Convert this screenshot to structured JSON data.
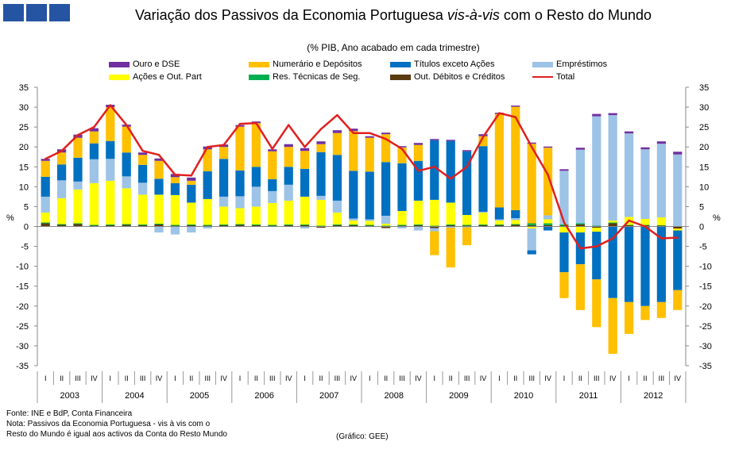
{
  "title_main": "Variação dos Passivos da Economia Portuguesa",
  "title_italic": "vis-à-vis",
  "title_end": "com o Resto do Mundo",
  "subtitle": "(% PIB, Ano acabado em cada trimestre)",
  "source": "Fonte: INE e BdP, Conta Financeira",
  "note_line1": "Nota: Passivos da Economia Portuguesa - vis à vis com o",
  "note_line2": "Resto do Mundo é igual aos activos da Conta do Resto Mundo",
  "credit": "(Gráfico: GEE)",
  "legend": [
    {
      "name": "Ouro e DSE",
      "color": "#7030a0",
      "kind": "bar"
    },
    {
      "name": "Numerário e Depósitos",
      "color": "#ffc000",
      "kind": "bar"
    },
    {
      "name": "Títulos exceto Ações",
      "color": "#0070c0",
      "kind": "bar"
    },
    {
      "name": "Empréstimos",
      "color": "#9dc3e6",
      "kind": "bar"
    },
    {
      "name": "Ações e Out. Part",
      "color": "#ffff00",
      "kind": "bar"
    },
    {
      "name": "Res. Técnicas de Seg.",
      "color": "#00b050",
      "kind": "bar"
    },
    {
      "name": "Out. Débitos e Créditos",
      "color": "#5a3a10",
      "kind": "bar"
    },
    {
      "name": "Total",
      "color": "#e02020",
      "kind": "line"
    }
  ],
  "chart_data": {
    "type": "bar",
    "stacked": true,
    "ylabel": "%",
    "ylim": [
      -35,
      35
    ],
    "yticks": [
      35,
      30,
      25,
      20,
      15,
      10,
      5,
      0,
      -5,
      -10,
      -15,
      -20,
      -25,
      -30,
      -35
    ],
    "quarter_labels": [
      "I",
      "II",
      "III",
      "IV",
      "I",
      "II",
      "III",
      "IV",
      "I",
      "II",
      "III",
      "IV",
      "I",
      "II",
      "III",
      "IV",
      "I",
      "II",
      "III",
      "IV",
      "I",
      "II",
      "III",
      "IV",
      "I",
      "II",
      "III",
      "IV",
      "I",
      "II",
      "III",
      "IV",
      "I",
      "II",
      "III",
      "IV",
      "I",
      "II",
      "III",
      "IV"
    ],
    "years": [
      "2003",
      "2004",
      "2005",
      "2006",
      "2007",
      "2008",
      "2009",
      "2010",
      "2011",
      "2012"
    ],
    "series": [
      {
        "name": "Out. Débitos e Créditos",
        "color": "#5a3a10",
        "values": [
          0.8,
          0.4,
          0.6,
          0.2,
          0.3,
          0.4,
          0.3,
          0.5,
          0.2,
          0.3,
          0.2,
          0.3,
          0.4,
          0.3,
          0.2,
          0.3,
          0.3,
          -0.3,
          0.3,
          0.3,
          0.2,
          -0.4,
          0.2,
          0.3,
          -0.4,
          0.3,
          0.2,
          0.3,
          0.3,
          0.4,
          0.3,
          0.3,
          0.2,
          0.5,
          -0.3,
          0.8,
          0.3,
          0.3,
          0.2,
          -0.5
        ]
      },
      {
        "name": "Res. Técnicas de Seg.",
        "color": "#00b050",
        "values": [
          0.2,
          0.2,
          0.2,
          0.2,
          0.2,
          0.2,
          0.2,
          0.2,
          0.2,
          0.2,
          0.2,
          0.2,
          0.2,
          0.2,
          0.2,
          0.2,
          0.2,
          0.2,
          0.2,
          0.2,
          0.2,
          0.2,
          0.2,
          0.2,
          0.2,
          0.2,
          0.2,
          0.2,
          0.2,
          0.2,
          0.5,
          0.5,
          0.3,
          0.3,
          0.2,
          0.2,
          0.1,
          0.1,
          0.1,
          0.1
        ]
      },
      {
        "name": "Ações e Out. Part",
        "color": "#ffff00",
        "values": [
          2.5,
          6.5,
          8.5,
          10.5,
          11.0,
          9.0,
          7.5,
          7.3,
          7.5,
          5.5,
          6.5,
          4.5,
          4.0,
          4.5,
          5.5,
          6.0,
          7.0,
          6.5,
          3.0,
          1.0,
          1.0,
          0.5,
          3.5,
          6.0,
          6.5,
          5.5,
          2.5,
          3.0,
          1.0,
          1.0,
          -0.5,
          1.0,
          -1.5,
          -1.5,
          -1.0,
          0.5,
          2.0,
          1.5,
          2.0,
          -0.5
        ]
      },
      {
        "name": "Empréstimos",
        "color": "#9dc3e6",
        "values": [
          4.0,
          4.5,
          2.0,
          6.0,
          5.5,
          3.0,
          3.0,
          -1.5,
          -2.0,
          -1.5,
          -0.5,
          2.5,
          3.0,
          5.0,
          3.0,
          4.0,
          -0.5,
          1.0,
          3.0,
          0.5,
          0.4,
          2.0,
          -0.5,
          -1.0,
          -0.8,
          -0.3,
          -0.2,
          0.2,
          0.3,
          0.5,
          -5.5,
          1.0,
          13.5,
          18.5,
          27.5,
          26.5,
          21.0,
          17.5,
          18.5,
          18.0
        ]
      },
      {
        "name": "Títulos exceto Ações",
        "color": "#0070c0",
        "values": [
          5.0,
          4.0,
          6.0,
          4.0,
          4.5,
          6.0,
          4.5,
          4.0,
          3.0,
          4.5,
          7.0,
          9.5,
          6.5,
          5.0,
          3.0,
          4.5,
          7.0,
          11.0,
          11.5,
          12.0,
          12.0,
          13.5,
          12.0,
          10.0,
          15.0,
          15.5,
          16.0,
          16.5,
          3.0,
          2.0,
          -1.0,
          -1.0,
          -10.0,
          -8.0,
          -12.0,
          -18.0,
          -19.0,
          -20.0,
          -19.0,
          -15.0
        ]
      },
      {
        "name": "Numerário e Depósitos",
        "color": "#ffc000",
        "values": [
          4.0,
          3.0,
          5.0,
          3.0,
          8.5,
          6.5,
          2.5,
          4.5,
          1.5,
          1.0,
          5.5,
          3.0,
          11.0,
          11.0,
          7.0,
          5.0,
          4.5,
          2.0,
          5.5,
          10.0,
          8.5,
          7.0,
          4.0,
          4.0,
          -6.0,
          -10.0,
          -4.5,
          2.5,
          23.5,
          26.0,
          20.0,
          17.0,
          -6.5,
          -11.5,
          -12.0,
          -14.0,
          -8.0,
          -3.5,
          -4.0,
          -5.0
        ]
      },
      {
        "name": "Ouro e DSE",
        "color": "#7030a0",
        "values": [
          0.5,
          0.8,
          0.8,
          0.8,
          0.6,
          0.5,
          0.6,
          0.6,
          0.8,
          0.8,
          0.7,
          0.6,
          0.4,
          0.4,
          0.5,
          0.7,
          0.7,
          0.7,
          0.7,
          0.6,
          0.4,
          0.4,
          0.3,
          0.5,
          0.3,
          0.3,
          0.3,
          0.5,
          0.3,
          0.3,
          0.3,
          0.3,
          0.4,
          0.5,
          0.6,
          0.5,
          0.5,
          0.5,
          0.6,
          0.7
        ]
      }
    ],
    "total": {
      "name": "Total",
      "color": "#e02020",
      "values": [
        17.0,
        19.0,
        23.0,
        25.0,
        30.5,
        25.5,
        19.0,
        18.0,
        13.0,
        12.8,
        20.0,
        20.5,
        25.8,
        26.0,
        19.5,
        25.5,
        20.0,
        24.5,
        28.0,
        23.5,
        23.5,
        22.0,
        19.5,
        14.0,
        15.0,
        12.0,
        15.0,
        22.5,
        28.5,
        27.5,
        20.0,
        13.0,
        1.0,
        -5.5,
        -5.0,
        -3.0,
        1.5,
        0.0,
        -3.0,
        -2.8
      ]
    }
  }
}
